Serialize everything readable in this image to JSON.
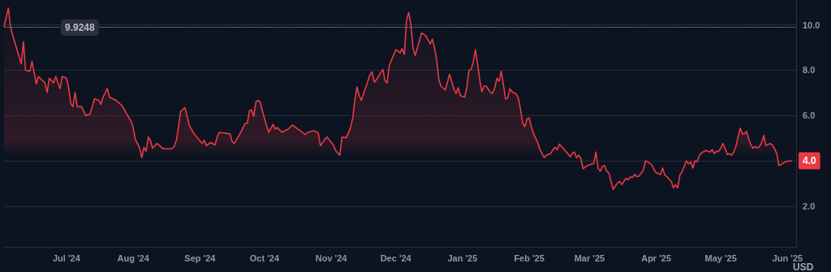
{
  "chart_data": {
    "type": "area",
    "ylabel": "USD",
    "grid": "y",
    "marker": "none",
    "xlim": [
      "2024-06-02",
      "2025-06-05"
    ],
    "xticks": [
      {
        "value": "2024-07-01",
        "label": "Jul '24"
      },
      {
        "value": "2024-08-01",
        "label": "Aug '24"
      },
      {
        "value": "2024-09-01",
        "label": "Sep '24"
      },
      {
        "value": "2024-10-01",
        "label": "Oct '24"
      },
      {
        "value": "2024-11-01",
        "label": "Nov '24"
      },
      {
        "value": "2024-12-01",
        "label": "Dec '24"
      },
      {
        "value": "2025-01-01",
        "label": "Jan '25"
      },
      {
        "value": "2025-02-01",
        "label": "Feb '25"
      },
      {
        "value": "2025-03-01",
        "label": "Mar '25"
      },
      {
        "value": "2025-04-01",
        "label": "Apr '25"
      },
      {
        "value": "2025-05-01",
        "label": "May '25"
      },
      {
        "value": "2025-06-01",
        "label": "Jun '25"
      }
    ],
    "ylim": [
      0.2,
      11.1
    ],
    "yticks": [
      {
        "value": 2,
        "label": "2.0"
      },
      {
        "value": 4,
        "label": null
      },
      {
        "value": 6,
        "label": "6.0"
      },
      {
        "value": 8,
        "label": "8.0"
      },
      {
        "value": 10,
        "label": "10.0"
      }
    ],
    "ref_lines": [
      {
        "axis": "y",
        "value": 9.9248,
        "label": "9.9248",
        "color": "#9aa0ab",
        "line_style": "dotted"
      }
    ],
    "annotations": [
      {
        "text": "4.0",
        "x": "2025-06-03",
        "y": 4.0
      }
    ],
    "series": [
      {
        "color": "#ea3943",
        "x": [
          "2024-06-02",
          "2024-06-04",
          "2024-06-05",
          "2024-06-07",
          "2024-06-10",
          "2024-06-11",
          "2024-06-12",
          "2024-06-14",
          "2024-06-15",
          "2024-06-17",
          "2024-06-18",
          "2024-06-21",
          "2024-06-22",
          "2024-06-23",
          "2024-06-25",
          "2024-06-26",
          "2024-06-28",
          "2024-06-29",
          "2024-07-01",
          "2024-07-02",
          "2024-07-03",
          "2024-07-04",
          "2024-07-05",
          "2024-07-06",
          "2024-07-08",
          "2024-07-10",
          "2024-07-12",
          "2024-07-14",
          "2024-07-16",
          "2024-07-17",
          "2024-07-18",
          "2024-07-20",
          "2024-07-21",
          "2024-07-24",
          "2024-07-27",
          "2024-07-29",
          "2024-07-31",
          "2024-08-01",
          "2024-08-02",
          "2024-08-04",
          "2024-08-05",
          "2024-08-06",
          "2024-08-07",
          "2024-08-08",
          "2024-08-09",
          "2024-08-10",
          "2024-08-12",
          "2024-08-15",
          "2024-08-19",
          "2024-08-20",
          "2024-08-21",
          "2024-08-22",
          "2024-08-23",
          "2024-08-25",
          "2024-08-26",
          "2024-08-27",
          "2024-08-29",
          "2024-09-01",
          "2024-09-02",
          "2024-09-03",
          "2024-09-04",
          "2024-09-06",
          "2024-09-08",
          "2024-09-09",
          "2024-09-10",
          "2024-09-12",
          "2024-09-15",
          "2024-09-16",
          "2024-09-17",
          "2024-09-20",
          "2024-09-22",
          "2024-09-23",
          "2024-09-24",
          "2024-09-25",
          "2024-09-26",
          "2024-09-27",
          "2024-09-28",
          "2024-09-29",
          "2024-09-30",
          "2024-10-02",
          "2024-10-03",
          "2024-10-05",
          "2024-10-06",
          "2024-10-07",
          "2024-10-09",
          "2024-10-12",
          "2024-10-14",
          "2024-10-17",
          "2024-10-20",
          "2024-10-21",
          "2024-10-24",
          "2024-10-26",
          "2024-10-27",
          "2024-10-29",
          "2024-10-30",
          "2024-11-02",
          "2024-11-03",
          "2024-11-05",
          "2024-11-06",
          "2024-11-08",
          "2024-11-10",
          "2024-11-11",
          "2024-11-12",
          "2024-11-13",
          "2024-11-14",
          "2024-11-15",
          "2024-11-17",
          "2024-11-19",
          "2024-11-20",
          "2024-11-21",
          "2024-11-22",
          "2024-11-25",
          "2024-11-26",
          "2024-11-27",
          "2024-11-28",
          "2024-11-30",
          "2024-12-01",
          "2024-12-03",
          "2024-12-04",
          "2024-12-05",
          "2024-12-06",
          "2024-12-07",
          "2024-12-08",
          "2024-12-09",
          "2024-12-10",
          "2024-12-12",
          "2024-12-13",
          "2024-12-15",
          "2024-12-17",
          "2024-12-18",
          "2024-12-19",
          "2024-12-20",
          "2024-12-21",
          "2024-12-22",
          "2024-12-24",
          "2024-12-26",
          "2024-12-28",
          "2024-12-29",
          "2024-12-30",
          "2024-12-31",
          "2025-01-02",
          "2025-01-03",
          "2025-01-04",
          "2025-01-05",
          "2025-01-06",
          "2025-01-07",
          "2025-01-08",
          "2025-01-09",
          "2025-01-10",
          "2025-01-11",
          "2025-01-12",
          "2025-01-14",
          "2025-01-15",
          "2025-01-16",
          "2025-01-17",
          "2025-01-18",
          "2025-01-19",
          "2025-01-20",
          "2025-01-21",
          "2025-01-22",
          "2025-01-23",
          "2025-01-24",
          "2025-01-26",
          "2025-01-27",
          "2025-01-28",
          "2025-01-29",
          "2025-01-30",
          "2025-01-31",
          "2025-02-01",
          "2025-02-02",
          "2025-02-03",
          "2025-02-04",
          "2025-02-05",
          "2025-02-06",
          "2025-02-07",
          "2025-02-08",
          "2025-02-09",
          "2025-02-11",
          "2025-02-12",
          "2025-02-13",
          "2025-02-14",
          "2025-02-15",
          "2025-02-17",
          "2025-02-18",
          "2025-02-20",
          "2025-02-21",
          "2025-02-22",
          "2025-02-23",
          "2025-02-24",
          "2025-02-25",
          "2025-02-26",
          "2025-02-27",
          "2025-02-28",
          "2025-03-01",
          "2025-03-03",
          "2025-03-04",
          "2025-03-05",
          "2025-03-06",
          "2025-03-07",
          "2025-03-08",
          "2025-03-09",
          "2025-03-10",
          "2025-03-11",
          "2025-03-12",
          "2025-03-14",
          "2025-03-15",
          "2025-03-16",
          "2025-03-17",
          "2025-03-18",
          "2025-03-19",
          "2025-03-20",
          "2025-03-21",
          "2025-03-22",
          "2025-03-23",
          "2025-03-24",
          "2025-03-26",
          "2025-03-27",
          "2025-03-28",
          "2025-03-30",
          "2025-03-31",
          "2025-04-01",
          "2025-04-03",
          "2025-04-04",
          "2025-04-05",
          "2025-04-06",
          "2025-04-07",
          "2025-04-08",
          "2025-04-09",
          "2025-04-10",
          "2025-04-11",
          "2025-04-12",
          "2025-04-13",
          "2025-04-14",
          "2025-04-15",
          "2025-04-16",
          "2025-04-17",
          "2025-04-18",
          "2025-04-19",
          "2025-04-20",
          "2025-04-21",
          "2025-04-22",
          "2025-04-24",
          "2025-04-26",
          "2025-04-27",
          "2025-04-28",
          "2025-04-29",
          "2025-04-30",
          "2025-05-01",
          "2025-05-02",
          "2025-05-03",
          "2025-05-04",
          "2025-05-05",
          "2025-05-06",
          "2025-05-07",
          "2025-05-08",
          "2025-05-09",
          "2025-05-10",
          "2025-05-11",
          "2025-05-12",
          "2025-05-13",
          "2025-05-14",
          "2025-05-15",
          "2025-05-16",
          "2025-05-17",
          "2025-05-18",
          "2025-05-19",
          "2025-05-20",
          "2025-05-21",
          "2025-05-22",
          "2025-05-24",
          "2025-05-25",
          "2025-05-26",
          "2025-05-27",
          "2025-05-28",
          "2025-05-30",
          "2025-05-31",
          "2025-06-01",
          "2025-06-03"
        ],
        "values": [
          9.92,
          10.74,
          9.9,
          9.23,
          8.28,
          9.26,
          8.0,
          7.96,
          8.39,
          7.4,
          7.72,
          7.44,
          7.02,
          7.65,
          7.44,
          7.72,
          7.19,
          7.72,
          7.65,
          7.23,
          6.53,
          6.39,
          7.02,
          6.39,
          6.39,
          6.0,
          6.07,
          6.74,
          6.67,
          6.49,
          6.81,
          7.19,
          6.81,
          6.67,
          6.42,
          6.07,
          5.75,
          5.47,
          4.95,
          4.56,
          4.14,
          4.6,
          4.42,
          5.05,
          4.91,
          4.56,
          4.77,
          4.53,
          4.53,
          4.63,
          4.88,
          5.47,
          6.18,
          6.35,
          6.0,
          5.58,
          5.23,
          4.88,
          4.77,
          4.91,
          4.67,
          4.81,
          4.7,
          5.05,
          5.26,
          5.23,
          5.19,
          4.84,
          4.77,
          5.26,
          5.65,
          5.65,
          6.21,
          6.25,
          5.96,
          6.6,
          6.67,
          6.6,
          6.21,
          5.54,
          5.26,
          5.61,
          5.4,
          5.47,
          5.26,
          5.4,
          5.58,
          5.37,
          5.16,
          5.26,
          5.33,
          5.23,
          4.67,
          4.95,
          5.05,
          4.7,
          4.46,
          4.25,
          5.05,
          5.02,
          5.47,
          5.89,
          6.7,
          7.26,
          6.88,
          6.67,
          7.23,
          7.79,
          7.93,
          7.47,
          7.58,
          8.04,
          7.54,
          7.44,
          8.21,
          8.67,
          8.91,
          8.77,
          8.95,
          8.7,
          10.2,
          10.55,
          10.0,
          8.98,
          8.65,
          9.3,
          9.65,
          9.51,
          9.16,
          9.37,
          8.98,
          8.46,
          7.58,
          7.3,
          7.12,
          7.82,
          7.16,
          6.98,
          7.23,
          6.88,
          6.81,
          7.23,
          8.0,
          8.04,
          8.35,
          8.91,
          8.28,
          7.58,
          7.05,
          7.3,
          7.3,
          7.02,
          6.98,
          7.23,
          7.65,
          7.51,
          7.96,
          7.37,
          6.74,
          6.77,
          7.19,
          7.05,
          6.95,
          6.74,
          6.25,
          5.65,
          5.51,
          5.86,
          5.89,
          5.5,
          5.2,
          5.0,
          4.8,
          4.49,
          4.3,
          4.14,
          4.25,
          4.32,
          4.49,
          4.6,
          4.49,
          4.74,
          4.53,
          4.42,
          4.18,
          4.32,
          4.39,
          4.14,
          4.25,
          4.11,
          3.65,
          3.72,
          3.79,
          3.82,
          3.89,
          4.39,
          3.68,
          3.54,
          3.75,
          3.79,
          3.54,
          3.47,
          3.09,
          2.74,
          3.02,
          3.09,
          2.95,
          3.09,
          3.23,
          3.16,
          3.3,
          3.26,
          3.4,
          3.3,
          3.33,
          3.58,
          4.0,
          3.96,
          3.82,
          3.61,
          3.47,
          3.4,
          3.68,
          3.37,
          3.3,
          3.19,
          3.09,
          2.81,
          2.95,
          2.81,
          3.37,
          3.51,
          3.75,
          4.0,
          3.86,
          3.96,
          3.68,
          4.0,
          3.96,
          4.21,
          4.35,
          4.46,
          4.39,
          4.49,
          4.32,
          4.42,
          4.42,
          4.56,
          4.77,
          4.56,
          4.28,
          4.32,
          4.25,
          4.39,
          4.63,
          5.05,
          5.44,
          5.19,
          5.19,
          5.3,
          4.98,
          4.7,
          4.56,
          4.63,
          4.56,
          4.63,
          4.81,
          5.12,
          4.67,
          4.77,
          4.7,
          4.53,
          4.32,
          3.79,
          3.89,
          3.96,
          3.98,
          4.0
        ]
      }
    ]
  }
}
